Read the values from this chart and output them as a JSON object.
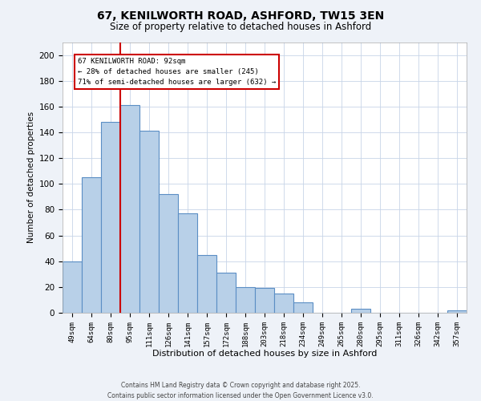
{
  "title": "67, KENILWORTH ROAD, ASHFORD, TW15 3EN",
  "subtitle": "Size of property relative to detached houses in Ashford",
  "xlabel": "Distribution of detached houses by size in Ashford",
  "ylabel": "Number of detached properties",
  "bar_labels": [
    "49sqm",
    "64sqm",
    "80sqm",
    "95sqm",
    "111sqm",
    "126sqm",
    "141sqm",
    "157sqm",
    "172sqm",
    "188sqm",
    "203sqm",
    "218sqm",
    "234sqm",
    "249sqm",
    "265sqm",
    "280sqm",
    "295sqm",
    "311sqm",
    "326sqm",
    "342sqm",
    "357sqm"
  ],
  "bar_values": [
    40,
    105,
    148,
    161,
    141,
    92,
    77,
    45,
    31,
    20,
    19,
    15,
    8,
    0,
    0,
    3,
    0,
    0,
    0,
    0,
    2
  ],
  "bar_color": "#b8d0e8",
  "bar_edge_color": "#5b8ec4",
  "ylim": [
    0,
    210
  ],
  "yticks": [
    0,
    20,
    40,
    60,
    80,
    100,
    120,
    140,
    160,
    180,
    200
  ],
  "property_line_label": "67 KENILWORTH ROAD: 92sqm",
  "annotation_line1": "← 28% of detached houses are smaller (245)",
  "annotation_line2": "71% of semi-detached houses are larger (632) →",
  "annotation_box_color": "#ffffff",
  "annotation_box_edge_color": "#cc0000",
  "vline_color": "#cc0000",
  "footer_line1": "Contains HM Land Registry data © Crown copyright and database right 2025.",
  "footer_line2": "Contains public sector information licensed under the Open Government Licence v3.0.",
  "bg_color": "#eef2f8",
  "plot_bg_color": "#ffffff",
  "grid_color": "#c8d4e8"
}
